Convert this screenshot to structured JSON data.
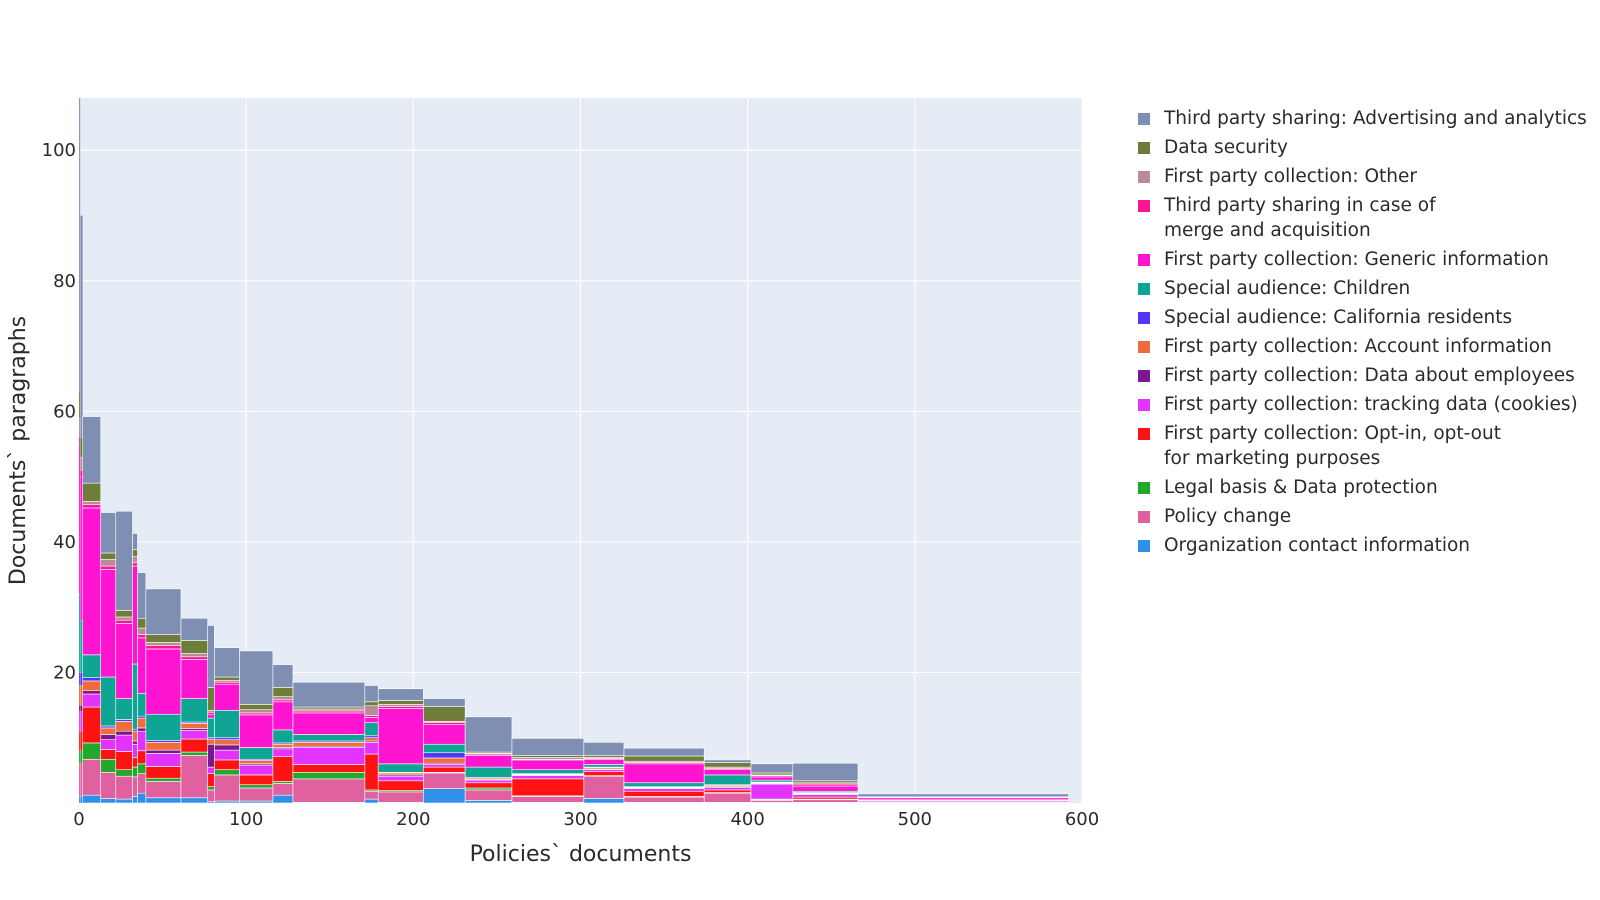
{
  "chart_data": {
    "type": "bar",
    "stacked": true,
    "x_axis": {
      "label": "Policies` documents",
      "range": [
        0,
        600
      ],
      "ticks": [
        0,
        100,
        200,
        300,
        400,
        500,
        600
      ]
    },
    "y_axis": {
      "label": "Documents` paragraphs",
      "range": [
        0,
        108
      ],
      "ticks": [
        20,
        40,
        60,
        80,
        100
      ]
    },
    "grid": true,
    "legend_position": "right",
    "series_order": [
      "org",
      "policy",
      "legal",
      "optin",
      "cookies",
      "employees",
      "account",
      "california",
      "children",
      "generic",
      "merge",
      "fpother",
      "datasec",
      "tpads"
    ],
    "series": [
      {
        "key": "tpads",
        "name": "Third party sharing: Advertising and analytics",
        "color": "#7f8fb3"
      },
      {
        "key": "datasec",
        "name": "Data security",
        "color": "#6e7d3a"
      },
      {
        "key": "fpother",
        "name": "First party collection: Other",
        "color": "#b88a9a"
      },
      {
        "key": "merge",
        "name": "Third party sharing in case of\nmerge and acquisition",
        "color": "#ff1493"
      },
      {
        "key": "generic",
        "name": "First party collection: Generic information",
        "color": "#ff14d2"
      },
      {
        "key": "children",
        "name": "Special audience: Children",
        "color": "#0ea595"
      },
      {
        "key": "california",
        "name": "Special audience: California residents",
        "color": "#5533ff"
      },
      {
        "key": "account",
        "name": "First party collection: Account information",
        "color": "#ef6c3d"
      },
      {
        "key": "employees",
        "name": "First party collection: Data about employees",
        "color": "#7a1890"
      },
      {
        "key": "cookies",
        "name": "First party collection: tracking data (cookies)",
        "color": "#e233ff"
      },
      {
        "key": "optin",
        "name": "First party collection: Opt-in, opt-out\nfor marketing purposes",
        "color": "#ff1212"
      },
      {
        "key": "legal",
        "name": "Legal basis & Data protection",
        "color": "#22a82a"
      },
      {
        "key": "policy",
        "name": "Policy change",
        "color": "#e060a0"
      },
      {
        "key": "org",
        "name": "Organization contact information",
        "color": "#2e90e8"
      }
    ],
    "bars": [
      {
        "x0": 0,
        "x1": 0.8,
        "v": {
          "org": 1,
          "policy": 5,
          "legal": 2,
          "optin": 3,
          "cookies": 3,
          "employees": 1,
          "account": 3,
          "california": 2,
          "children": 12,
          "generic": 23,
          "merge": 1,
          "fpother": 3,
          "datasec": 4,
          "tpads": 45
        }
      },
      {
        "x0": 0.8,
        "x1": 2.2,
        "v": {
          "org": 1,
          "policy": 5,
          "legal": 2,
          "optin": 3,
          "cookies": 3,
          "employees": 1,
          "account": 3,
          "california": 2,
          "children": 8,
          "generic": 22,
          "merge": 1,
          "fpother": 2,
          "datasec": 3,
          "tpads": 34
        }
      },
      {
        "x0": 2.2,
        "x1": 13,
        "v": {
          "org": 1.2,
          "policy": 5.5,
          "legal": 2.5,
          "optin": 5.5,
          "cookies": 2,
          "employees": 0.5,
          "account": 1.5,
          "california": 0.5,
          "children": 3.5,
          "generic": 22.5,
          "merge": 0.5,
          "fpother": 0.5,
          "datasec": 2.8,
          "tpads": 10.2
        }
      },
      {
        "x0": 13,
        "x1": 22,
        "v": {
          "org": 0.7,
          "policy": 4,
          "legal": 2,
          "optin": 1.5,
          "cookies": 1.5,
          "employees": 0.8,
          "account": 1,
          "california": 0.3,
          "children": 7.5,
          "generic": 16.5,
          "merge": 0.5,
          "fpother": 1,
          "datasec": 1,
          "tpads": 6.2
        }
      },
      {
        "x0": 22,
        "x1": 32,
        "v": {
          "org": 0.6,
          "policy": 3.5,
          "legal": 1,
          "optin": 2.8,
          "cookies": 2.5,
          "employees": 0.6,
          "account": 1.5,
          "california": 0.3,
          "children": 3.2,
          "generic": 11.5,
          "merge": 0.5,
          "fpother": 0.5,
          "datasec": 1,
          "tpads": 15.2
        }
      },
      {
        "x0": 32,
        "x1": 35,
        "v": {
          "org": 1,
          "policy": 3,
          "legal": 1.5,
          "optin": 1.5,
          "cookies": 2,
          "employees": 0.5,
          "account": 1.5,
          "california": 0.3,
          "children": 10,
          "generic": 15,
          "merge": 0.5,
          "fpother": 1,
          "datasec": 1,
          "tpads": 2.5
        }
      },
      {
        "x0": 35,
        "x1": 40,
        "v": {
          "org": 1.5,
          "policy": 3,
          "legal": 1.5,
          "optin": 2,
          "cookies": 3,
          "employees": 0.5,
          "account": 1.5,
          "california": 0.3,
          "children": 3.5,
          "generic": 8.5,
          "merge": 0.5,
          "fpother": 1,
          "datasec": 1.5,
          "tpads": 7
        }
      },
      {
        "x0": 40,
        "x1": 61,
        "v": {
          "org": 0.8,
          "policy": 2.5,
          "legal": 0.5,
          "optin": 1.8,
          "cookies": 2,
          "employees": 0.5,
          "account": 1.2,
          "california": 0.3,
          "children": 4,
          "generic": 10,
          "merge": 0.5,
          "fpother": 0.5,
          "datasec": 1.2,
          "tpads": 7
        }
      },
      {
        "x0": 61,
        "x1": 77,
        "v": {
          "org": 0.8,
          "policy": 6.5,
          "legal": 0.5,
          "optin": 2,
          "cookies": 1.3,
          "employees": 0.3,
          "account": 0.8,
          "california": 0.2,
          "children": 3.6,
          "generic": 6,
          "merge": 0.4,
          "fpother": 0.5,
          "datasec": 2,
          "tpads": 3.4
        }
      },
      {
        "x0": 77,
        "x1": 81,
        "v": {
          "org": 0.2,
          "policy": 1.8,
          "legal": 0.5,
          "optin": 2,
          "cookies": 1,
          "employees": 3.5,
          "account": 0.8,
          "california": 0.2,
          "children": 3,
          "generic": 0.6,
          "merge": 0.3,
          "fpother": 0.3,
          "datasec": 3.5,
          "tpads": 9.5
        }
      },
      {
        "x0": 81,
        "x1": 96,
        "v": {
          "org": 0.3,
          "policy": 4,
          "legal": 0.8,
          "optin": 1.5,
          "cookies": 1.5,
          "employees": 0.8,
          "account": 0.8,
          "california": 0.3,
          "children": 4.2,
          "generic": 4,
          "merge": 0.3,
          "fpother": 0.3,
          "datasec": 0.5,
          "tpads": 4.5
        }
      },
      {
        "x0": 96,
        "x1": 116,
        "v": {
          "org": 0.3,
          "policy": 2,
          "legal": 0.5,
          "optin": 1.5,
          "cookies": 1.5,
          "employees": 0.2,
          "account": 0.5,
          "california": 0.2,
          "children": 1.8,
          "generic": 5,
          "merge": 0.3,
          "fpother": 0.5,
          "datasec": 0.8,
          "tpads": 8.2
        }
      },
      {
        "x0": 116,
        "x1": 128,
        "v": {
          "org": 1.2,
          "policy": 1.8,
          "legal": 0.3,
          "optin": 3.8,
          "cookies": 1.2,
          "employees": 0.2,
          "account": 0.5,
          "california": 0.2,
          "children": 2,
          "generic": 4.3,
          "merge": 0.3,
          "fpother": 0.5,
          "datasec": 1.4,
          "tpads": 3.5
        }
      },
      {
        "x0": 128,
        "x1": 171,
        "v": {
          "org": 0.1,
          "policy": 3.6,
          "legal": 1,
          "optin": 1.2,
          "cookies": 2.6,
          "employees": 0.2,
          "account": 0.6,
          "california": 0.2,
          "children": 1,
          "generic": 3.3,
          "merge": 0.3,
          "fpother": 0.3,
          "datasec": 0.3,
          "tpads": 3.8
        }
      },
      {
        "x0": 171,
        "x1": 179,
        "v": {
          "org": 0.6,
          "policy": 1.2,
          "legal": 0.2,
          "optin": 5.5,
          "cookies": 1.8,
          "employees": 0.2,
          "account": 0.5,
          "california": 0.3,
          "children": 2,
          "generic": 0.8,
          "merge": 0.3,
          "fpother": 1.5,
          "datasec": 0.6,
          "tpads": 2.5
        }
      },
      {
        "x0": 179,
        "x1": 206,
        "v": {
          "org": 0.1,
          "policy": 1.6,
          "legal": 0.2,
          "optin": 1.5,
          "cookies": 0.7,
          "employees": 0.2,
          "account": 0.3,
          "california": 0.1,
          "children": 1.3,
          "generic": 8.5,
          "merge": 0.3,
          "fpother": 0.3,
          "datasec": 0.6,
          "tpads": 1.8
        }
      },
      {
        "x0": 206,
        "x1": 231,
        "v": {
          "org": 2.2,
          "policy": 2.4,
          "legal": 0.1,
          "optin": 0.8,
          "cookies": 0.4,
          "employees": 0.2,
          "account": 0.8,
          "california": 0.8,
          "children": 1.3,
          "generic": 3,
          "merge": 0.3,
          "fpother": 0.2,
          "datasec": 2.3,
          "tpads": 1.2
        }
      },
      {
        "x0": 231,
        "x1": 259,
        "v": {
          "org": 0.4,
          "policy": 1.6,
          "legal": 0.3,
          "optin": 0.8,
          "cookies": 0.4,
          "employees": 0.1,
          "account": 0.2,
          "california": 0.1,
          "children": 1.6,
          "generic": 1.8,
          "merge": 0.2,
          "fpother": 0.1,
          "datasec": 0.2,
          "tpads": 5.4
        }
      },
      {
        "x0": 259,
        "x1": 302,
        "v": {
          "org": 0.1,
          "policy": 0.9,
          "legal": 0.1,
          "optin": 2.6,
          "cookies": 0.5,
          "employees": 0.1,
          "account": 0.1,
          "california": 0.1,
          "children": 0.6,
          "generic": 1.5,
          "merge": 0.1,
          "fpother": 0.3,
          "datasec": 0.3,
          "tpads": 2.6
        }
      },
      {
        "x0": 302,
        "x1": 326,
        "v": {
          "org": 0.7,
          "policy": 3.4,
          "legal": 0.1,
          "optin": 0.6,
          "cookies": 0.3,
          "employees": 0.1,
          "account": 0.2,
          "california": 0.1,
          "children": 0.4,
          "generic": 0.8,
          "merge": 0.1,
          "fpother": 0.2,
          "datasec": 0.3,
          "tpads": 2
        }
      },
      {
        "x0": 326,
        "x1": 374,
        "v": {
          "org": 0.1,
          "policy": 0.8,
          "legal": 0.1,
          "optin": 0.8,
          "cookies": 0.4,
          "employees": 0.1,
          "account": 0.1,
          "california": 0.1,
          "children": 0.6,
          "generic": 2.9,
          "merge": 0.2,
          "fpother": 0.2,
          "datasec": 0.8,
          "tpads": 1.2
        }
      },
      {
        "x0": 374,
        "x1": 402,
        "v": {
          "org": 0.1,
          "policy": 1.4,
          "legal": 0.1,
          "optin": 0.4,
          "cookies": 0.4,
          "employees": 0.1,
          "account": 0.2,
          "california": 0.1,
          "children": 1.5,
          "generic": 0.8,
          "merge": 0.2,
          "fpother": 0.2,
          "datasec": 0.7,
          "tpads": 0.4
        }
      },
      {
        "x0": 402,
        "x1": 427,
        "v": {
          "org": 0.1,
          "policy": 0.3,
          "legal": 0.1,
          "optin": 0.1,
          "cookies": 2.3,
          "employees": 0.1,
          "account": 0.1,
          "california": 0.1,
          "children": 0.3,
          "generic": 0.5,
          "merge": 0.2,
          "fpother": 0.1,
          "datasec": 0.3,
          "tpads": 1.4
        }
      },
      {
        "x0": 427,
        "x1": 466,
        "v": {
          "org": 0.1,
          "policy": 0.4,
          "legal": 0.1,
          "optin": 0.3,
          "cookies": 0.4,
          "employees": 0.1,
          "account": 0.1,
          "california": 0.1,
          "children": 0.2,
          "generic": 0.8,
          "merge": 0.3,
          "fpother": 0.2,
          "datasec": 0.3,
          "tpads": 2.7
        }
      },
      {
        "x0": 466,
        "x1": 592,
        "v": {
          "org": 0.02,
          "policy": 0.1,
          "legal": 0.02,
          "optin": 0.05,
          "cookies": 0.2,
          "employees": 0.02,
          "account": 0.02,
          "california": 0.02,
          "children": 0.05,
          "generic": 0.3,
          "merge": 0.05,
          "fpother": 0.05,
          "datasec": 0.05,
          "tpads": 0.45
        }
      }
    ]
  },
  "colors": {
    "plot_bg": "#e5ecf6",
    "grid": "#ffffff",
    "bar_border": "#ffffff"
  }
}
